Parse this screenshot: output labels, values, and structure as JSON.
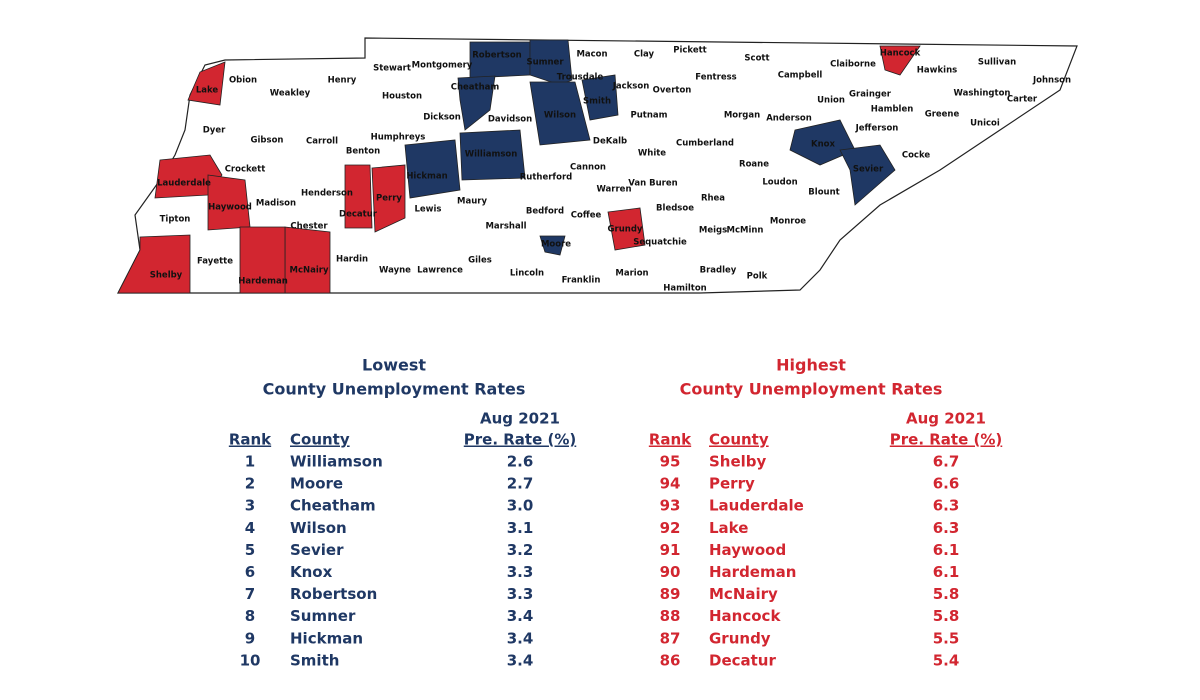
{
  "map": {
    "counties": [
      {
        "name": "Lake",
        "color": "#d22630"
      },
      {
        "name": "Obion"
      },
      {
        "name": "Weakley"
      },
      {
        "name": "Henry"
      },
      {
        "name": "Stewart"
      },
      {
        "name": "Montgomery"
      },
      {
        "name": "Robertson",
        "color": "#1f3864"
      },
      {
        "name": "Sumner",
        "color": "#1f3864"
      },
      {
        "name": "Macon"
      },
      {
        "name": "Clay"
      },
      {
        "name": "Pickett"
      },
      {
        "name": "Scott"
      },
      {
        "name": "Campbell"
      },
      {
        "name": "Claiborne"
      },
      {
        "name": "Hancock",
        "color": "#d22630"
      },
      {
        "name": "Hawkins"
      },
      {
        "name": "Sullivan"
      },
      {
        "name": "Johnson"
      },
      {
        "name": "Trousdale"
      },
      {
        "name": "Jackson"
      },
      {
        "name": "Overton"
      },
      {
        "name": "Fentress"
      },
      {
        "name": "Cheatham",
        "color": "#1f3864"
      },
      {
        "name": "Houston"
      },
      {
        "name": "Dickson"
      },
      {
        "name": "Davidson"
      },
      {
        "name": "Wilson",
        "color": "#1f3864"
      },
      {
        "name": "Smith",
        "color": "#1f3864"
      },
      {
        "name": "Putnam"
      },
      {
        "name": "Morgan"
      },
      {
        "name": "Anderson"
      },
      {
        "name": "Union"
      },
      {
        "name": "Grainger"
      },
      {
        "name": "Hamblen"
      },
      {
        "name": "Jefferson"
      },
      {
        "name": "Greene"
      },
      {
        "name": "Washington"
      },
      {
        "name": "Unicoi"
      },
      {
        "name": "Carter"
      },
      {
        "name": "Dyer"
      },
      {
        "name": "Gibson"
      },
      {
        "name": "Carroll"
      },
      {
        "name": "Humphreys"
      },
      {
        "name": "Benton"
      },
      {
        "name": "Williamson",
        "color": "#1f3864"
      },
      {
        "name": "DeKalb"
      },
      {
        "name": "Cumberland"
      },
      {
        "name": "White"
      },
      {
        "name": "Knox",
        "color": "#1f3864"
      },
      {
        "name": "Cocke"
      },
      {
        "name": "Roane"
      },
      {
        "name": "Crockett"
      },
      {
        "name": "Lauderdale",
        "color": "#d22630"
      },
      {
        "name": "Cannon"
      },
      {
        "name": "Rutherford"
      },
      {
        "name": "Hickman",
        "color": "#1f3864"
      },
      {
        "name": "Sevier",
        "color": "#1f3864"
      },
      {
        "name": "Loudon"
      },
      {
        "name": "Blount"
      },
      {
        "name": "Henderson"
      },
      {
        "name": "Haywood",
        "color": "#d22630"
      },
      {
        "name": "Madison"
      },
      {
        "name": "Decatur",
        "color": "#d22630"
      },
      {
        "name": "Perry",
        "color": "#d22630"
      },
      {
        "name": "Warren"
      },
      {
        "name": "Van Buren"
      },
      {
        "name": "Lewis"
      },
      {
        "name": "Maury"
      },
      {
        "name": "Rhea"
      },
      {
        "name": "Bedford"
      },
      {
        "name": "Coffee"
      },
      {
        "name": "Bledsoe"
      },
      {
        "name": "Monroe"
      },
      {
        "name": "Tipton"
      },
      {
        "name": "Chester"
      },
      {
        "name": "Marshall"
      },
      {
        "name": "Grundy",
        "color": "#d22630"
      },
      {
        "name": "Meigs"
      },
      {
        "name": "McMinn"
      },
      {
        "name": "Sequatchie"
      },
      {
        "name": "Moore",
        "color": "#1f3864"
      },
      {
        "name": "Fayette"
      },
      {
        "name": "Hardin"
      },
      {
        "name": "Giles"
      },
      {
        "name": "Lawrence"
      },
      {
        "name": "Wayne"
      },
      {
        "name": "McNairy",
        "color": "#d22630"
      },
      {
        "name": "Shelby",
        "color": "#d22630"
      },
      {
        "name": "Hardeman",
        "color": "#d22630"
      },
      {
        "name": "Lincoln"
      },
      {
        "name": "Franklin"
      },
      {
        "name": "Marion"
      },
      {
        "name": "Bradley"
      },
      {
        "name": "Polk"
      },
      {
        "name": "Hamilton"
      }
    ]
  },
  "tables": [
    {
      "title": [
        "Lowest",
        "County Unemployment Rates"
      ],
      "color": "#1f3864",
      "period": "Aug 2021",
      "columns": [
        "Rank",
        "County",
        "Pre. Rate (%)"
      ],
      "rows": [
        [
          1,
          "Williamson",
          "2.6"
        ],
        [
          2,
          "Moore",
          "2.7"
        ],
        [
          3,
          "Cheatham",
          "3.0"
        ],
        [
          4,
          "Wilson",
          "3.1"
        ],
        [
          5,
          "Sevier",
          "3.2"
        ],
        [
          6,
          "Knox",
          "3.3"
        ],
        [
          7,
          "Robertson",
          "3.3"
        ],
        [
          8,
          "Sumner",
          "3.4"
        ],
        [
          9,
          "Hickman",
          "3.4"
        ],
        [
          10,
          "Smith",
          "3.4"
        ]
      ]
    },
    {
      "title": [
        "Highest",
        "County Unemployment Rates"
      ],
      "color": "#d22630",
      "period": "Aug 2021",
      "columns": [
        "Rank",
        "County",
        "Pre. Rate (%)"
      ],
      "rows": [
        [
          95,
          "Shelby",
          "6.7"
        ],
        [
          94,
          "Perry",
          "6.6"
        ],
        [
          93,
          "Lauderdale",
          "6.3"
        ],
        [
          92,
          "Lake",
          "6.3"
        ],
        [
          91,
          "Haywood",
          "6.1"
        ],
        [
          90,
          "Hardeman",
          "6.1"
        ],
        [
          89,
          "McNairy",
          "5.8"
        ],
        [
          88,
          "Hancock",
          "5.8"
        ],
        [
          87,
          "Grundy",
          "5.5"
        ],
        [
          86,
          "Decatur",
          "5.4"
        ]
      ]
    }
  ]
}
